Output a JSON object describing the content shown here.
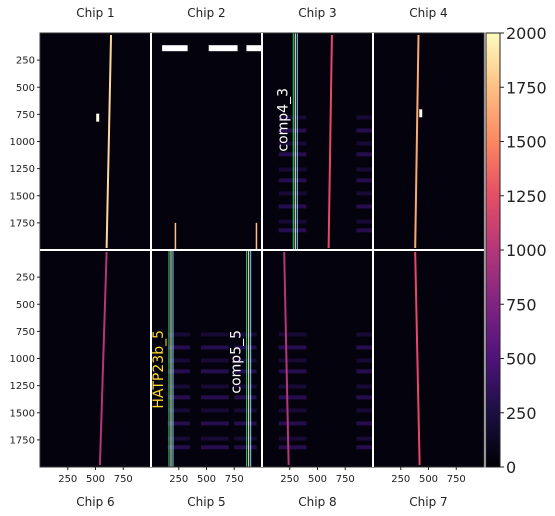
{
  "chart_data": {
    "type": "heatmap",
    "title": "",
    "colormap": "magma",
    "colorbar": {
      "min": 0,
      "max": 2000,
      "ticks": [
        0,
        250,
        500,
        750,
        1000,
        1250,
        1500,
        1750,
        2000
      ]
    },
    "axes": {
      "ylim": [
        0,
        2000
      ],
      "y_ticks": [
        250,
        500,
        750,
        1000,
        1250,
        1500,
        1750
      ],
      "xlim": [
        0,
        1000
      ],
      "x_ticks": [
        250,
        500,
        750
      ]
    },
    "panels": [
      {
        "chip": "Chip 1",
        "label_pos": "top",
        "traces": [
          {
            "x_top": 640,
            "x_bottom": 600,
            "color": "#fcd79e"
          }
        ],
        "features": [
          {
            "type": "spot",
            "x": 520,
            "y": 780
          }
        ]
      },
      {
        "chip": "Chip 2",
        "label_pos": "top",
        "traces": [],
        "features": [
          {
            "type": "top-band",
            "segments": [
              [
                100,
                330
              ],
              [
                520,
                780
              ],
              [
                860,
                1000
              ]
            ],
            "y": 140
          },
          {
            "type": "faint-line",
            "x": 220,
            "y_from": 1750,
            "y_to": 2000
          },
          {
            "type": "faint-line",
            "x": 950,
            "y_from": 1750,
            "y_to": 2000
          }
        ]
      },
      {
        "chip": "Chip 3",
        "label_pos": "top",
        "traces": [
          {
            "x_top": 630,
            "x_bottom": 600,
            "color": "#e7486a"
          }
        ],
        "apertures": [
          {
            "name": "comp4_3",
            "x": 300,
            "color": "#37d67a"
          }
        ],
        "stripes": true
      },
      {
        "chip": "Chip 4",
        "label_pos": "top",
        "traces": [
          {
            "x_top": 410,
            "x_bottom": 380,
            "color": "#fca872"
          }
        ],
        "features": [
          {
            "type": "spot",
            "x": 430,
            "y": 740
          }
        ]
      },
      {
        "chip": "Chip 6",
        "label_pos": "bottom",
        "traces": [
          {
            "x_top": 600,
            "x_bottom": 540,
            "color": "#b5367a"
          }
        ]
      },
      {
        "chip": "Chip 5",
        "label_pos": "bottom",
        "traces": [],
        "apertures": [
          {
            "name": "HATP23b_5",
            "x": 180,
            "color": "#37d67a",
            "label_color": "#ffd92f"
          },
          {
            "name": "comp5_5",
            "x": 880,
            "color": "#37d67a",
            "label_color": "#ffffff"
          }
        ],
        "stripes": true
      },
      {
        "chip": "Chip 8",
        "label_pos": "bottom",
        "traces": [
          {
            "x_top": 200,
            "x_bottom": 240,
            "color": "#b5367a"
          }
        ],
        "stripes": true
      },
      {
        "chip": "Chip 7",
        "label_pos": "bottom",
        "traces": [
          {
            "x_top": 380,
            "x_bottom": 420,
            "color": "#e7486a"
          }
        ]
      }
    ]
  }
}
